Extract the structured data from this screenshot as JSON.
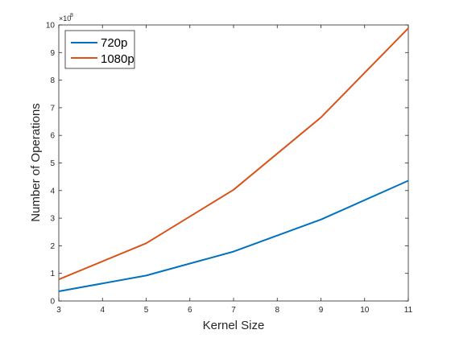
{
  "chart_data": {
    "type": "line",
    "title": "",
    "xlabel": "Kernel Size",
    "ylabel": "Number of Operations",
    "y_exponent_label": "×10",
    "y_exponent_power": "8",
    "xlim": [
      3,
      11
    ],
    "ylim": [
      0,
      10
    ],
    "y_scale_note": "values in units of 1e8",
    "x_ticks": [
      3,
      4,
      5,
      6,
      7,
      8,
      9,
      10,
      11
    ],
    "y_ticks": [
      0,
      1,
      2,
      3,
      4,
      5,
      6,
      7,
      8,
      9,
      10
    ],
    "grid": false,
    "legend_position": "top-left",
    "x": [
      3,
      5,
      7,
      9,
      11
    ],
    "series": [
      {
        "name": "720p",
        "color": "#0072BD",
        "values": [
          0.35,
          0.92,
          1.79,
          2.95,
          4.36
        ]
      },
      {
        "name": "1080p",
        "color": "#D95319",
        "values": [
          0.78,
          2.09,
          4.03,
          6.65,
          9.88
        ]
      }
    ]
  }
}
